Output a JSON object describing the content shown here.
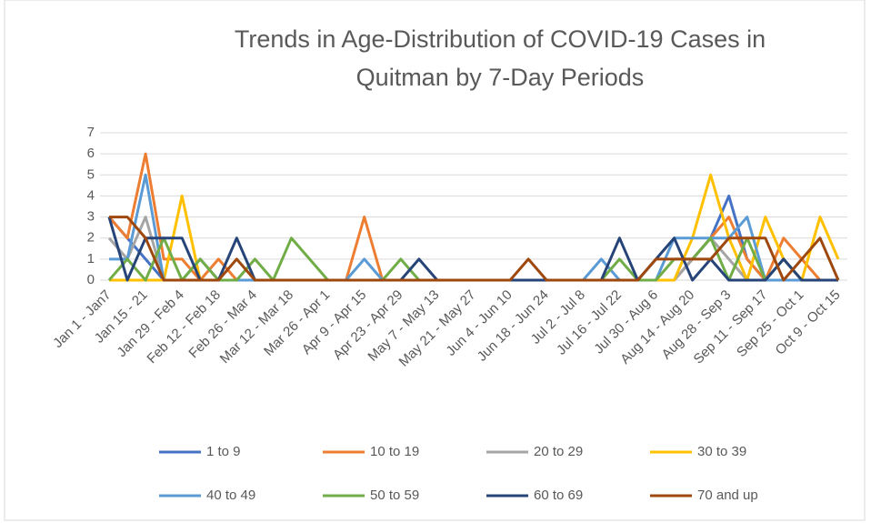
{
  "chart_data": {
    "type": "line",
    "title": "Trends in Age-Distribution of COVID-19 Cases in Quitman by 7-Day Periods",
    "categories": [
      "Jan 1 - Jan7",
      null,
      "Jan 15 - 21",
      null,
      "Jan 29 - Feb 4",
      null,
      "Feb 12 - Feb 18",
      null,
      "Feb 26 - Mar 4",
      null,
      "Mar 12 - Mar 18",
      null,
      "Mar 26 - Apr 1",
      null,
      "Apr 9 - Apr 15",
      null,
      "Apr 23 - Apr 29",
      null,
      "May 7 - May 13",
      null,
      "May 21 - May 27",
      null,
      "Jun 4 - Jun 10",
      null,
      "Jun 18 - Jun 24",
      null,
      "Jul 2 - Jul 8",
      null,
      "Jul 16 - Jul 22",
      null,
      "Jul 30 - Aug 6",
      null,
      "Aug 14 - Aug 20",
      null,
      "Aug 28 - Sep 3",
      null,
      "Sep 11 - Sep 17",
      null,
      "Sep 25 - Oct 1",
      null,
      "Oct 9 - Oct 15"
    ],
    "series": [
      {
        "name": "1 to 9",
        "color": "#4472c4",
        "values": [
          3,
          2,
          1,
          0,
          0,
          0,
          0,
          0,
          0,
          0,
          0,
          0,
          0,
          0,
          0,
          0,
          0,
          0,
          0,
          0,
          0,
          0,
          0,
          0,
          0,
          0,
          0,
          0,
          0,
          0,
          0,
          0,
          1,
          2,
          4,
          1,
          0,
          0,
          0,
          0,
          0
        ]
      },
      {
        "name": "10 to 19",
        "color": "#ed7d31",
        "values": [
          3,
          2,
          6,
          1,
          1,
          0,
          1,
          0,
          0,
          0,
          0,
          0,
          0,
          0,
          3,
          0,
          0,
          0,
          0,
          0,
          0,
          0,
          0,
          0,
          0,
          0,
          0,
          0,
          0,
          0,
          0,
          0,
          1,
          2,
          3,
          1,
          0,
          2,
          1,
          0,
          0
        ]
      },
      {
        "name": "20 to 29",
        "color": "#a5a5a5",
        "values": [
          2,
          1,
          3,
          0,
          0,
          0,
          0,
          0,
          0,
          0,
          0,
          0,
          0,
          0,
          0,
          0,
          0,
          0,
          0,
          0,
          0,
          0,
          0,
          0,
          0,
          0,
          0,
          0,
          0,
          0,
          0,
          0,
          1,
          2,
          1,
          0,
          0,
          0,
          0,
          0,
          0
        ]
      },
      {
        "name": "30 to 39",
        "color": "#ffc000",
        "values": [
          0,
          0,
          0,
          0,
          4,
          0,
          0,
          0,
          0,
          0,
          0,
          0,
          0,
          0,
          0,
          0,
          0,
          0,
          0,
          0,
          0,
          0,
          0,
          0,
          0,
          0,
          0,
          0,
          0,
          0,
          0,
          0,
          2,
          5,
          2,
          0,
          3,
          1,
          0,
          3,
          1
        ]
      },
      {
        "name": "40 to 49",
        "color": "#5b9bd5",
        "values": [
          1,
          1,
          5,
          0,
          0,
          1,
          0,
          0,
          0,
          0,
          0,
          0,
          0,
          0,
          1,
          0,
          0,
          0,
          0,
          0,
          0,
          0,
          0,
          0,
          0,
          0,
          0,
          1,
          0,
          0,
          0,
          2,
          2,
          2,
          2,
          3,
          0,
          0,
          0,
          0,
          0
        ]
      },
      {
        "name": "50 to 59",
        "color": "#70ad47",
        "values": [
          0,
          1,
          0,
          2,
          0,
          1,
          0,
          0,
          1,
          0,
          2,
          1,
          0,
          0,
          0,
          0,
          1,
          0,
          0,
          0,
          0,
          0,
          0,
          0,
          0,
          0,
          0,
          0,
          1,
          0,
          0,
          1,
          1,
          2,
          0,
          2,
          0,
          1,
          0,
          0,
          0
        ]
      },
      {
        "name": "60 to 69",
        "color": "#264478",
        "values": [
          3,
          0,
          2,
          2,
          2,
          0,
          0,
          2,
          0,
          0,
          0,
          0,
          0,
          0,
          0,
          0,
          0,
          1,
          0,
          0,
          0,
          0,
          0,
          0,
          0,
          0,
          0,
          0,
          2,
          0,
          1,
          2,
          0,
          1,
          0,
          0,
          0,
          1,
          0,
          0,
          0
        ]
      },
      {
        "name": "70 and up",
        "color": "#9e480e",
        "values": [
          3,
          3,
          2,
          0,
          0,
          0,
          0,
          1,
          0,
          0,
          0,
          0,
          0,
          0,
          0,
          0,
          0,
          0,
          0,
          0,
          0,
          0,
          0,
          1,
          0,
          0,
          0,
          0,
          0,
          0,
          1,
          1,
          1,
          1,
          2,
          2,
          2,
          0,
          1,
          2,
          0
        ]
      }
    ],
    "ylim": [
      0,
      7
    ],
    "yticks": [
      0,
      1,
      2,
      3,
      4,
      5,
      6,
      7
    ],
    "grid": true
  }
}
